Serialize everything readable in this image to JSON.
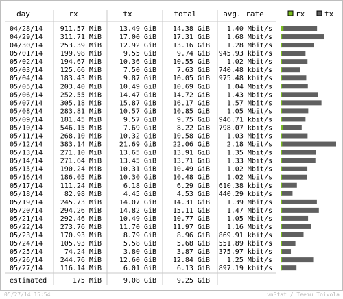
{
  "header": {
    "day": "day",
    "rx": "rx",
    "tx": "tx",
    "total": "total",
    "avg_rate": "avg. rate"
  },
  "legend": [
    {
      "label": "rx",
      "color": "#7bbf1f"
    },
    {
      "label": "tx",
      "color": "#606060"
    }
  ],
  "colors": {
    "rx_bar": "#7bbf1f",
    "tx_bar": "#606060",
    "separator": "#c8c8c8",
    "footer_text": "#b8b8b8"
  },
  "rows": [
    {
      "day": "04/28/14",
      "rx": "911.57 MiB",
      "tx": "13.49 GiB",
      "total": "14.38 GiB",
      "rate": "1.40 Mbit/s"
    },
    {
      "day": "04/29/14",
      "rx": "311.71 MiB",
      "tx": "17.00 GiB",
      "total": "17.31 GiB",
      "rate": "1.68 Mbit/s"
    },
    {
      "day": "04/30/14",
      "rx": "253.39 MiB",
      "tx": "12.92 GiB",
      "total": "13.16 GiB",
      "rate": "1.28 Mbit/s"
    },
    {
      "day": "05/01/14",
      "rx": "199.98 MiB",
      "tx": "9.55 GiB",
      "total": "9.74 GiB",
      "rate": "945.93 kbit/s"
    },
    {
      "day": "05/02/14",
      "rx": "194.67 MiB",
      "tx": "10.36 GiB",
      "total": "10.55 GiB",
      "rate": "1.02 Mbit/s"
    },
    {
      "day": "05/03/14",
      "rx": "125.66 MiB",
      "tx": "7.50 GiB",
      "total": "7.63 GiB",
      "rate": "740.48 kbit/s"
    },
    {
      "day": "05/04/14",
      "rx": "183.43 MiB",
      "tx": "9.87 GiB",
      "total": "10.05 GiB",
      "rate": "975.48 kbit/s"
    },
    {
      "day": "05/05/14",
      "rx": "203.40 MiB",
      "tx": "10.49 GiB",
      "total": "10.69 GiB",
      "rate": "1.04 Mbit/s"
    },
    {
      "day": "05/06/14",
      "rx": "252.55 MiB",
      "tx": "14.47 GiB",
      "total": "14.72 GiB",
      "rate": "1.43 Mbit/s"
    },
    {
      "day": "05/07/14",
      "rx": "305.18 MiB",
      "tx": "15.87 GiB",
      "total": "16.17 GiB",
      "rate": "1.57 Mbit/s"
    },
    {
      "day": "05/08/14",
      "rx": "283.81 MiB",
      "tx": "10.57 GiB",
      "total": "10.85 GiB",
      "rate": "1.05 Mbit/s"
    },
    {
      "day": "05/09/14",
      "rx": "181.45 MiB",
      "tx": "9.57 GiB",
      "total": "9.75 GiB",
      "rate": "946.71 kbit/s"
    },
    {
      "day": "05/10/14",
      "rx": "546.15 MiB",
      "tx": "7.69 GiB",
      "total": "8.22 GiB",
      "rate": "798.07 kbit/s"
    },
    {
      "day": "05/11/14",
      "rx": "268.10 MiB",
      "tx": "10.32 GiB",
      "total": "10.58 GiB",
      "rate": "1.03 Mbit/s"
    },
    {
      "day": "05/12/14",
      "rx": "383.14 MiB",
      "tx": "21.69 GiB",
      "total": "22.06 GiB",
      "rate": "2.18 Mbit/s"
    },
    {
      "day": "05/13/14",
      "rx": "271.10 MiB",
      "tx": "13.65 GiB",
      "total": "13.91 GiB",
      "rate": "1.35 Mbit/s"
    },
    {
      "day": "05/14/14",
      "rx": "271.64 MiB",
      "tx": "13.45 GiB",
      "total": "13.71 GiB",
      "rate": "1.33 Mbit/s"
    },
    {
      "day": "05/15/14",
      "rx": "190.24 MiB",
      "tx": "10.31 GiB",
      "total": "10.49 GiB",
      "rate": "1.02 Mbit/s"
    },
    {
      "day": "05/16/14",
      "rx": "186.05 MiB",
      "tx": "10.30 GiB",
      "total": "10.48 GiB",
      "rate": "1.02 Mbit/s"
    },
    {
      "day": "05/17/14",
      "rx": "111.24 MiB",
      "tx": "6.18 GiB",
      "total": "6.29 GiB",
      "rate": "610.38 kbit/s"
    },
    {
      "day": "05/18/14",
      "rx": "82.98 MiB",
      "tx": "4.45 GiB",
      "total": "4.53 GiB",
      "rate": "440.29 kbit/s"
    },
    {
      "day": "05/19/14",
      "rx": "245.73 MiB",
      "tx": "14.07 GiB",
      "total": "14.31 GiB",
      "rate": "1.39 Mbit/s"
    },
    {
      "day": "05/20/14",
      "rx": "294.26 MiB",
      "tx": "14.82 GiB",
      "total": "15.11 GiB",
      "rate": "1.47 Mbit/s"
    },
    {
      "day": "05/21/14",
      "rx": "292.46 MiB",
      "tx": "10.49 GiB",
      "total": "10.77 GiB",
      "rate": "1.05 Mbit/s"
    },
    {
      "day": "05/22/14",
      "rx": "273.76 MiB",
      "tx": "11.70 GiB",
      "total": "11.97 GiB",
      "rate": "1.16 Mbit/s"
    },
    {
      "day": "05/23/14",
      "rx": "170.93 MiB",
      "tx": "8.79 GiB",
      "total": "8.96 GiB",
      "rate": "869.91 kbit/s"
    },
    {
      "day": "05/24/14",
      "rx": "105.93 MiB",
      "tx": "5.58 GiB",
      "total": "5.68 GiB",
      "rate": "551.89 kbit/s"
    },
    {
      "day": "05/25/14",
      "rx": "74.24 MiB",
      "tx": "3.80 GiB",
      "total": "3.87 GiB",
      "rate": "375.97 kbit/s"
    },
    {
      "day": "05/26/14",
      "rx": "244.76 MiB",
      "tx": "12.60 GiB",
      "total": "12.84 GiB",
      "rate": "1.25 Mbit/s"
    },
    {
      "day": "05/27/14",
      "rx": "116.14 MiB",
      "tx": "6.01 GiB",
      "total": "6.13 GiB",
      "rate": "897.19 kbit/s"
    }
  ],
  "estimated": {
    "label": "estimated",
    "rx": "175 MiB",
    "tx": "9.08 GiB",
    "total": "9.25 GiB"
  },
  "footer": {
    "timestamp": "05/27/14 15:54",
    "credit": "vnStat / Teemu Toivola"
  },
  "chart_data": {
    "type": "bar",
    "stacked": true,
    "unit": "GiB",
    "categories": [
      "04/28/14",
      "04/29/14",
      "04/30/14",
      "05/01/14",
      "05/02/14",
      "05/03/14",
      "05/04/14",
      "05/05/14",
      "05/06/14",
      "05/07/14",
      "05/08/14",
      "05/09/14",
      "05/10/14",
      "05/11/14",
      "05/12/14",
      "05/13/14",
      "05/14/14",
      "05/15/14",
      "05/16/14",
      "05/17/14",
      "05/18/14",
      "05/19/14",
      "05/20/14",
      "05/21/14",
      "05/22/14",
      "05/23/14",
      "05/24/14",
      "05/25/14",
      "05/26/14",
      "05/27/14"
    ],
    "series": [
      {
        "name": "rx",
        "values": [
          0.89,
          0.3,
          0.25,
          0.2,
          0.19,
          0.12,
          0.18,
          0.2,
          0.25,
          0.3,
          0.28,
          0.18,
          0.53,
          0.26,
          0.37,
          0.26,
          0.27,
          0.19,
          0.18,
          0.11,
          0.08,
          0.24,
          0.29,
          0.29,
          0.27,
          0.17,
          0.1,
          0.07,
          0.24,
          0.11
        ]
      },
      {
        "name": "tx",
        "values": [
          13.49,
          17.0,
          12.92,
          9.55,
          10.36,
          7.5,
          9.87,
          10.49,
          14.47,
          15.87,
          10.57,
          9.57,
          7.69,
          10.32,
          21.69,
          13.65,
          13.45,
          10.31,
          10.3,
          6.18,
          4.45,
          14.07,
          14.82,
          10.49,
          11.7,
          8.79,
          5.58,
          3.8,
          12.6,
          6.01
        ]
      }
    ],
    "legend_position": "top-right"
  }
}
